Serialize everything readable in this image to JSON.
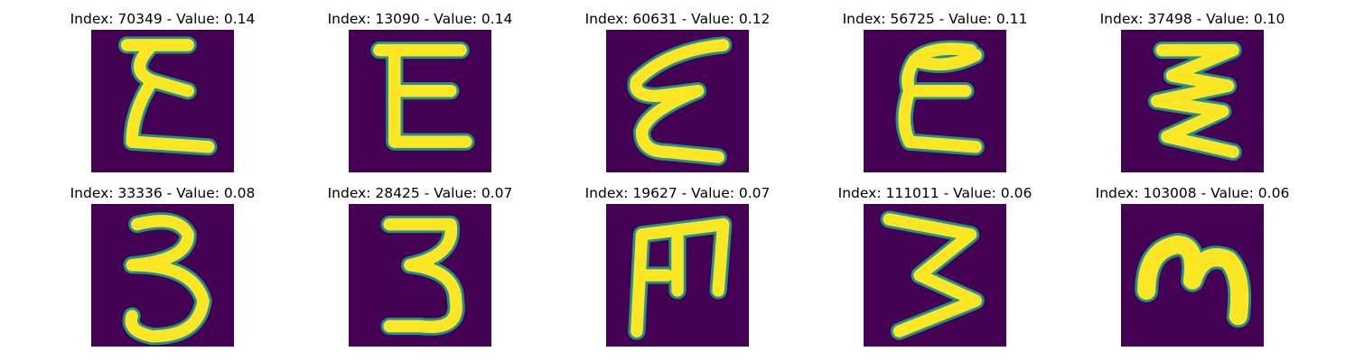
{
  "colors": {
    "background": "#440154",
    "stroke_edge": "#21918c",
    "stroke_mid": "#5ec962",
    "stroke_core": "#fde725"
  },
  "images": [
    {
      "title": "Index: 70349 - Value: 0.14",
      "glyph": "E-like handwritten character"
    },
    {
      "title": "Index: 13090 - Value: 0.14",
      "glyph": "E-like handwritten character"
    },
    {
      "title": "Index: 60631 - Value: 0.12",
      "glyph": "E-like handwritten character"
    },
    {
      "title": "Index: 56725 - Value: 0.11",
      "glyph": "E-like handwritten character"
    },
    {
      "title": "Index: 37498 - Value: 0.10",
      "glyph": "E-like handwritten character"
    },
    {
      "title": "Index: 33336 - Value: 0.08",
      "glyph": "3-like handwritten character"
    },
    {
      "title": "Index: 28425 - Value: 0.07",
      "glyph": "3-like handwritten character"
    },
    {
      "title": "Index: 19627 - Value: 0.07",
      "glyph": "M-like handwritten character"
    },
    {
      "title": "Index: 111011 - Value: 0.06",
      "glyph": "3-like handwritten character"
    },
    {
      "title": "Index: 103008 - Value: 0.06",
      "glyph": "m-like handwritten character"
    }
  ]
}
